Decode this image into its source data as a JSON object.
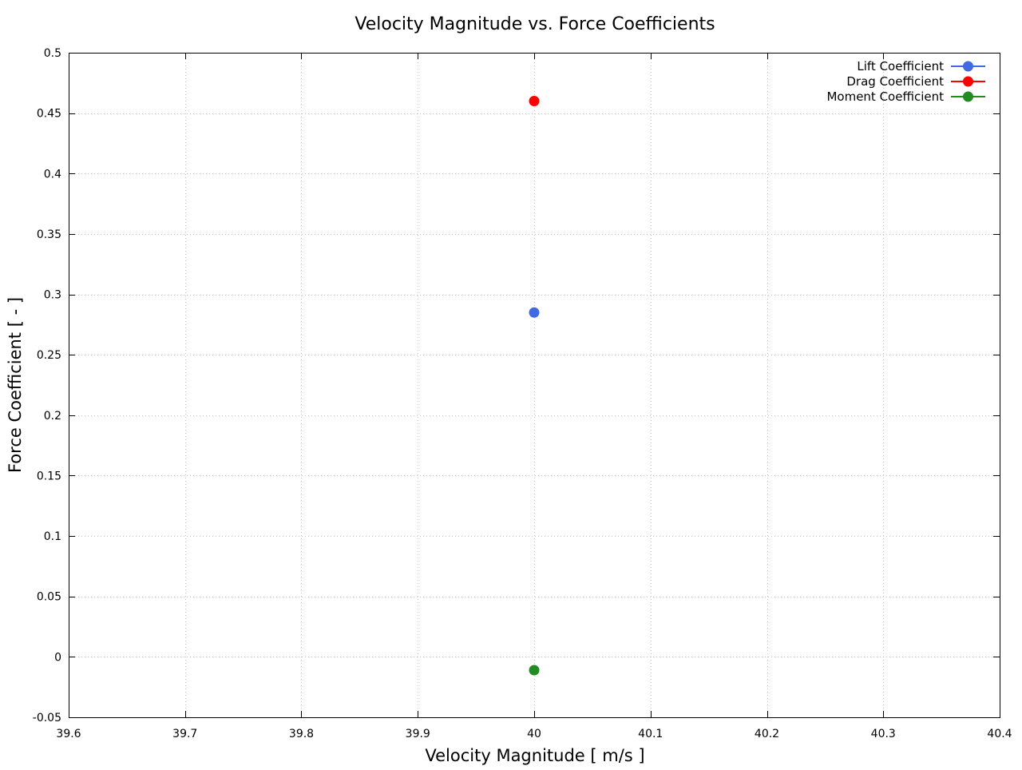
{
  "chart_data": {
    "type": "scatter",
    "title": "Velocity Magnitude vs. Force Coefficients",
    "xlabel": "Velocity Magnitude [ m/s ]",
    "ylabel": "Force Coefficient [ - ]",
    "xlim": [
      39.6,
      40.4
    ],
    "ylim": [
      -0.05,
      0.5
    ],
    "x_ticks": [
      39.6,
      39.7,
      39.8,
      39.9,
      40,
      40.1,
      40.2,
      40.3,
      40.4
    ],
    "x_tick_labels": [
      "39.6",
      "39.7",
      "39.8",
      "39.9",
      "40",
      "40.1",
      "40.2",
      "40.3",
      "40.4"
    ],
    "y_ticks": [
      -0.05,
      0,
      0.05,
      0.1,
      0.15,
      0.2,
      0.25,
      0.3,
      0.35,
      0.4,
      0.45,
      0.5
    ],
    "y_tick_labels": [
      "-0.05",
      "0",
      "0.05",
      "0.1",
      "0.15",
      "0.2",
      "0.25",
      "0.3",
      "0.35",
      "0.4",
      "0.45",
      "0.5"
    ],
    "grid": true,
    "legend_position": "top-right",
    "series": [
      {
        "name": "Lift Coefficient",
        "color": "#4169e1",
        "marker": "circle",
        "points": [
          {
            "x": 40,
            "y": 0.285
          }
        ]
      },
      {
        "name": "Drag Coefficient",
        "color": "#ff0000",
        "marker": "circle",
        "points": [
          {
            "x": 40,
            "y": 0.46
          }
        ]
      },
      {
        "name": "Moment Coefficient",
        "color": "#228b22",
        "marker": "circle",
        "points": [
          {
            "x": 40,
            "y": -0.011
          }
        ]
      }
    ]
  }
}
